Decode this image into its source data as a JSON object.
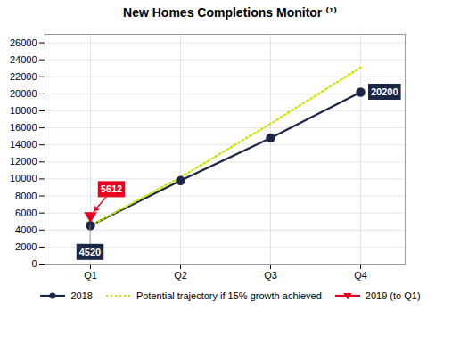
{
  "chart_data": {
    "type": "line",
    "title": "New Homes Completions Monitor ⁽¹⁾",
    "categories": [
      "Q1",
      "Q2",
      "Q3",
      "Q4"
    ],
    "series": [
      {
        "name": "2018",
        "color": "#1a2744",
        "values": [
          4520,
          9800,
          14800,
          20200
        ],
        "marker": "circle",
        "line_style": "solid"
      },
      {
        "name": "Potential trajectory if 15% growth achieved",
        "color": "#c8e600",
        "values": [
          4520,
          10200,
          16500,
          23100
        ],
        "line_style": "dotted"
      },
      {
        "name": "2019 (to Q1)",
        "color": "#e8001e",
        "values": [
          5612,
          null,
          null,
          null
        ],
        "marker": "triangle-down",
        "line_style": "solid"
      }
    ],
    "annotations": [
      {
        "text": "4520",
        "x": "Q1",
        "y": 4520,
        "color": "#1a2744"
      },
      {
        "text": "20200",
        "x": "Q4",
        "y": 20200,
        "color": "#1a2744"
      },
      {
        "text": "5612",
        "x": "Q1",
        "y": 5612,
        "color": "#e8001e"
      }
    ],
    "ylim": [
      0,
      27000
    ],
    "yticks": [
      0,
      2000,
      4000,
      6000,
      8000,
      10000,
      12000,
      14000,
      16000,
      18000,
      20000,
      22000,
      24000,
      26000
    ],
    "grid": true,
    "legend": "bottom"
  }
}
